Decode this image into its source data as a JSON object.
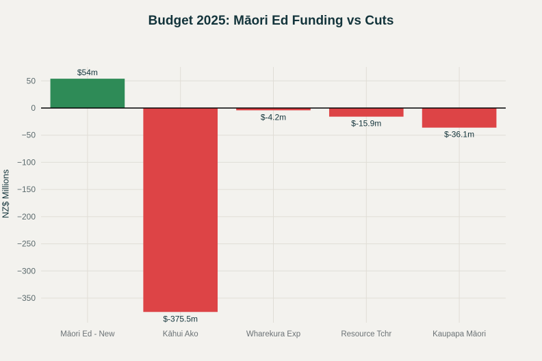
{
  "chart_data": {
    "type": "bar",
    "title": "Budget 2025: Māori Ed Funding vs Cuts",
    "xlabel": "",
    "ylabel": "NZ$ Millions",
    "categories": [
      "Māori Ed - New",
      "Kāhui Ako",
      "Wharekura Exp",
      "Resource Tchr",
      "Kaupapa Māori"
    ],
    "values": [
      54,
      -375.5,
      -4.2,
      -15.9,
      -36.1
    ],
    "data_labels": [
      "$54m",
      "$-375.5m",
      "$-4.2m",
      "$-15.9m",
      "$-36.1m"
    ],
    "ylim": [
      -390,
      70
    ],
    "yticks": [
      50,
      0,
      -50,
      -100,
      -150,
      -200,
      -250,
      -300,
      -350
    ],
    "ytick_labels": [
      "50",
      "0",
      "−50",
      "−100",
      "−150",
      "−200",
      "−250",
      "−300",
      "−350"
    ],
    "grid": true,
    "colors": {
      "positive": "#2e8b57",
      "negative": "#dd4446",
      "zero_line": "#000000",
      "grid": "#e0ddd6"
    }
  }
}
